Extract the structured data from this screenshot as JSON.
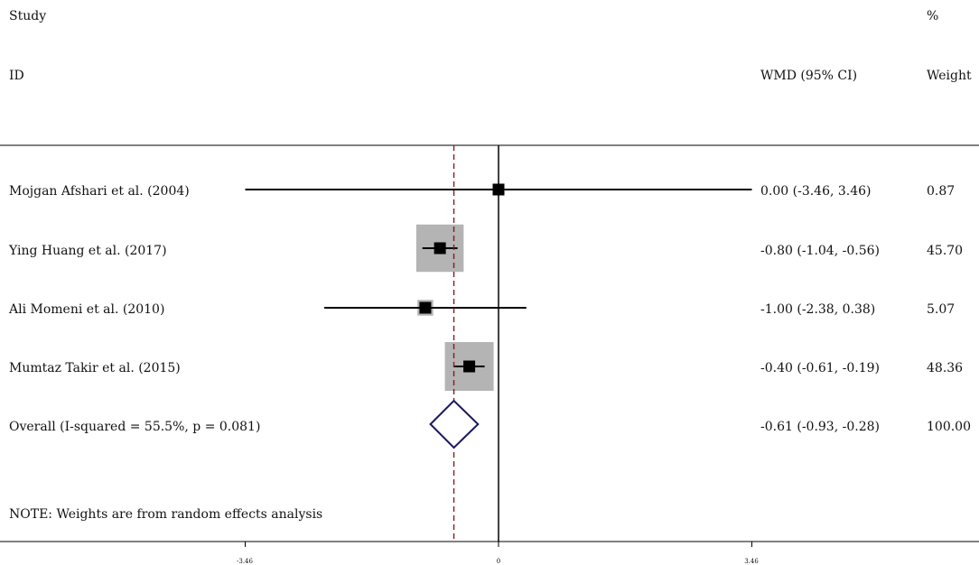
{
  "chart_data": {
    "type": "forest",
    "columns": {
      "study_top": "Study",
      "study_bottom": "ID",
      "effect": "WMD (95% CI)",
      "weight_top": "%",
      "weight_bottom": "Weight"
    },
    "studies": [
      {
        "label": "Mojgan Afshari et al.  (2004)",
        "estimate": 0.0,
        "ci_low": -3.46,
        "ci_high": 3.46,
        "ci_text": "0.00 (-3.46, 3.46)",
        "weight": 0.87,
        "weight_text": "0.87"
      },
      {
        "label": "Ying Huang et al.  (2017)",
        "estimate": -0.8,
        "ci_low": -1.04,
        "ci_high": -0.56,
        "ci_text": "-0.80 (-1.04, -0.56)",
        "weight": 45.7,
        "weight_text": "45.70"
      },
      {
        "label": "Ali Momeni et al. (2010)",
        "estimate": -1.0,
        "ci_low": -2.38,
        "ci_high": 0.38,
        "ci_text": "-1.00 (-2.38, 0.38)",
        "weight": 5.07,
        "weight_text": "5.07"
      },
      {
        "label": "Mumtaz Takir et al. (2015)",
        "estimate": -0.4,
        "ci_low": -0.61,
        "ci_high": -0.19,
        "ci_text": "-0.40 (-0.61, -0.19)",
        "weight": 48.36,
        "weight_text": "48.36"
      }
    ],
    "overall": {
      "label": "Overall  (I-squared = 55.5%, p = 0.081)",
      "estimate": -0.61,
      "ci_low": -0.93,
      "ci_high": -0.28,
      "ci_text": "-0.61 (-0.93, -0.28)",
      "weight_text": "100.00"
    },
    "note": "NOTE: Weights are from random effects analysis",
    "x_ticks": [
      {
        "value": -3.46,
        "label": "-3.46"
      },
      {
        "value": 0,
        "label": "0"
      },
      {
        "value": 3.46,
        "label": "3.46"
      }
    ],
    "xlim": [
      -3.46,
      3.46
    ],
    "colors": {
      "weight_box": "#b4b4b4",
      "point": "#000000",
      "overall_line": "#8b1a1a",
      "diamond": "#1a1a5e",
      "axis": "#000000"
    }
  }
}
